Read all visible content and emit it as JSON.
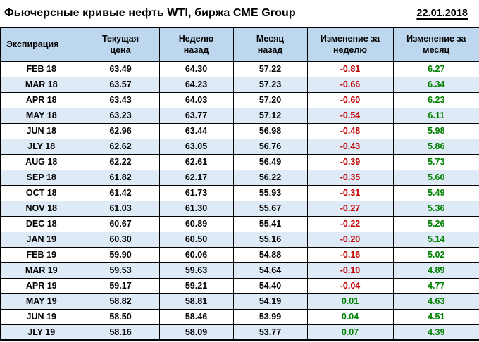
{
  "header": {
    "title": "Фьючерсные кривые нефть WTI, биржа CME Group",
    "date": "22.01.2018"
  },
  "chart_data": {
    "type": "table",
    "title": "Фьючерсные кривые нефть WTI, биржа CME Group",
    "columns": [
      "Экспирация",
      "Текущая\nцена",
      "Неделю\nназад",
      "Месяц\nназад",
      "Изменение за\nнеделю",
      "Изменение за\nмесяц"
    ],
    "rows": [
      [
        "FEB 18",
        "63.49",
        "64.30",
        "57.22",
        "-0.81",
        "6.27"
      ],
      [
        "MAR 18",
        "63.57",
        "64.23",
        "57.23",
        "-0.66",
        "6.34"
      ],
      [
        "APR 18",
        "63.43",
        "64.03",
        "57.20",
        "-0.60",
        "6.23"
      ],
      [
        "MAY 18",
        "63.23",
        "63.77",
        "57.12",
        "-0.54",
        "6.11"
      ],
      [
        "JUN 18",
        "62.96",
        "63.44",
        "56.98",
        "-0.48",
        "5.98"
      ],
      [
        "JLY 18",
        "62.62",
        "63.05",
        "56.76",
        "-0.43",
        "5.86"
      ],
      [
        "AUG 18",
        "62.22",
        "62.61",
        "56.49",
        "-0.39",
        "5.73"
      ],
      [
        "SEP 18",
        "61.82",
        "62.17",
        "56.22",
        "-0.35",
        "5.60"
      ],
      [
        "OCT 18",
        "61.42",
        "61.73",
        "55.93",
        "-0.31",
        "5.49"
      ],
      [
        "NOV 18",
        "61.03",
        "61.30",
        "55.67",
        "-0.27",
        "5.36"
      ],
      [
        "DEC 18",
        "60.67",
        "60.89",
        "55.41",
        "-0.22",
        "5.26"
      ],
      [
        "JAN 19",
        "60.30",
        "60.50",
        "55.16",
        "-0.20",
        "5.14"
      ],
      [
        "FEB 19",
        "59.90",
        "60.06",
        "54.88",
        "-0.16",
        "5.02"
      ],
      [
        "MAR 19",
        "59.53",
        "59.63",
        "54.64",
        "-0.10",
        "4.89"
      ],
      [
        "APR 19",
        "59.17",
        "59.21",
        "54.40",
        "-0.04",
        "4.77"
      ],
      [
        "MAY 19",
        "58.82",
        "58.81",
        "54.19",
        "0.01",
        "4.63"
      ],
      [
        "JUN 19",
        "58.50",
        "58.46",
        "53.99",
        "0.04",
        "4.51"
      ],
      [
        "JLY 19",
        "58.16",
        "58.09",
        "53.77",
        "0.07",
        "4.39"
      ]
    ]
  },
  "colors": {
    "header_bg": "#bdd7ee",
    "row_alt_bg": "#deebf7",
    "negative": "#c00000",
    "positive": "#008000"
  }
}
